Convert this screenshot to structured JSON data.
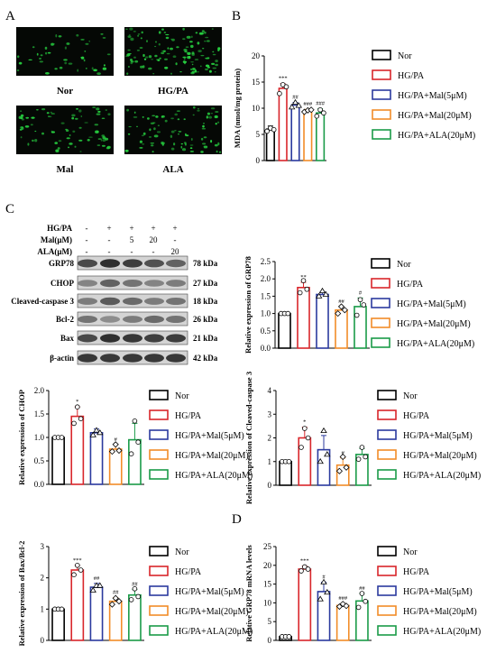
{
  "panel_letters": {
    "a": "A",
    "b": "B",
    "c": "C",
    "d": "D"
  },
  "colors": {
    "nor": "#000000",
    "hgpa": "#d9262b",
    "mal5": "#2b3a9e",
    "mal20": "#f28c28",
    "ala": "#1a9b48",
    "cell": "#27d040"
  },
  "micrographs": [
    {
      "label": "Nor",
      "density": 0.35
    },
    {
      "label": "HG/PA",
      "density": 1.0
    },
    {
      "label": "Mal",
      "density": 0.6
    },
    {
      "label": "ALA",
      "density": 0.7
    }
  ],
  "legend": [
    "Nor",
    "HG/PA",
    "HG/PA+Mal(5μM)",
    "HG/PA+Mal(20μM)",
    "HG/PA+ALA(20μM)"
  ],
  "blot": {
    "treatment_rows": [
      {
        "label": "HG/PA",
        "values": [
          "-",
          "+",
          "+",
          "+",
          "+"
        ]
      },
      {
        "label": "Mal(μM)",
        "values": [
          "-",
          "-",
          "5",
          "20",
          "-"
        ]
      },
      {
        "label": "ALA(μM)",
        "values": [
          "-",
          "-",
          "-",
          "-",
          "20"
        ]
      }
    ],
    "bands": [
      {
        "protein": "GRP78",
        "size": "78 kDa",
        "intensity": [
          0.75,
          0.9,
          0.82,
          0.7,
          0.6
        ]
      },
      {
        "protein": "CHOP",
        "size": "27 kDa",
        "intensity": [
          0.4,
          0.6,
          0.5,
          0.4,
          0.45
        ]
      },
      {
        "protein": "Cleaved-caspase 3",
        "size": "18 kDa",
        "intensity": [
          0.45,
          0.65,
          0.55,
          0.45,
          0.5
        ]
      },
      {
        "protein": "Bcl-2",
        "size": "26 kDa",
        "intensity": [
          0.5,
          0.35,
          0.45,
          0.55,
          0.5
        ]
      },
      {
        "protein": "Bax",
        "size": "21 kDa",
        "intensity": [
          0.75,
          0.9,
          0.85,
          0.8,
          0.82
        ]
      },
      {
        "protein": "β-actin",
        "size": "42 kDa",
        "intensity": [
          0.85,
          0.85,
          0.85,
          0.85,
          0.85
        ]
      }
    ]
  },
  "chart_data": [
    {
      "type": "bar",
      "title": "",
      "ylabel": "MDA (nmol/mg protein)",
      "ylim": [
        0,
        20
      ],
      "yticks": [
        0,
        5,
        10,
        15,
        20
      ],
      "categories": [
        "Nor",
        "HG/PA",
        "HG/PA+Mal(5μM)",
        "HG/PA+Mal(20μM)",
        "HG/PA+ALA(20μM)"
      ],
      "values": [
        6.0,
        13.8,
        10.6,
        9.5,
        9.1
      ],
      "errors": [
        0.6,
        0.9,
        0.5,
        0.3,
        0.8
      ],
      "points": [
        [
          5.6,
          6.2,
          5.9
        ],
        [
          12.8,
          14.5,
          14.1
        ],
        [
          10.2,
          11.1,
          10.5
        ],
        [
          9.3,
          9.6,
          9.7
        ],
        [
          8.5,
          9.7,
          9.1
        ]
      ],
      "significance": [
        "",
        "***",
        "##",
        "###",
        "###"
      ]
    },
    {
      "type": "bar",
      "title": "",
      "ylabel": "Relative expression of GRP78",
      "ylim": [
        0,
        2.5
      ],
      "yticks": [
        "0.0",
        "0.5",
        "1.0",
        "1.5",
        "2.0",
        "2.5"
      ],
      "categories": [
        "Nor",
        "HG/PA",
        "HG/PA+Mal(5μM)",
        "HG/PA+Mal(20μM)",
        "HG/PA+ALA(20μM)"
      ],
      "values": [
        1.0,
        1.75,
        1.55,
        1.1,
        1.2
      ],
      "errors": [
        0.02,
        0.15,
        0.08,
        0.1,
        0.25
      ],
      "points": [
        [
          1.0,
          1.0,
          1.0
        ],
        [
          1.6,
          1.95,
          1.7
        ],
        [
          1.5,
          1.65,
          1.55
        ],
        [
          1.0,
          1.2,
          1.1
        ],
        [
          0.95,
          1.4,
          1.25
        ]
      ],
      "significance": [
        "",
        "**",
        "",
        "##",
        "#"
      ]
    },
    {
      "type": "bar",
      "title": "",
      "ylabel": "Relative expression of CHOP",
      "ylim": [
        0,
        2.0
      ],
      "yticks": [
        "0.0",
        "0.5",
        "1.0",
        "1.5",
        "2.0"
      ],
      "categories": [
        "Nor",
        "HG/PA",
        "HG/PA+Mal(5μM)",
        "HG/PA+Mal(20μM)",
        "HG/PA+ALA(20μM)"
      ],
      "values": [
        1.0,
        1.45,
        1.1,
        0.75,
        0.95
      ],
      "errors": [
        0.02,
        0.2,
        0.08,
        0.1,
        0.35
      ],
      "points": [
        [
          1.0,
          1.0,
          1.0
        ],
        [
          1.3,
          1.65,
          1.4
        ],
        [
          1.05,
          1.15,
          1.1
        ],
        [
          0.7,
          0.85,
          0.72
        ],
        [
          0.65,
          1.35,
          0.9
        ]
      ],
      "significance": [
        "",
        "*",
        "",
        "#",
        ""
      ]
    },
    {
      "type": "bar",
      "title": "",
      "ylabel": "Relative expression of Cleaved-caspase 3",
      "ylim": [
        0,
        4
      ],
      "yticks": [
        "0",
        "1",
        "2",
        "3",
        "4"
      ],
      "categories": [
        "Nor",
        "HG/PA",
        "HG/PA+Mal(5μM)",
        "HG/PA+Mal(20μM)",
        "HG/PA+ALA(20μM)"
      ],
      "values": [
        1.0,
        2.0,
        1.5,
        0.85,
        1.3
      ],
      "errors": [
        0.02,
        0.45,
        0.6,
        0.3,
        0.25
      ],
      "points": [
        [
          1.0,
          1.0,
          1.0
        ],
        [
          1.6,
          2.4,
          2.0
        ],
        [
          1.0,
          2.3,
          1.3
        ],
        [
          0.6,
          1.2,
          0.75
        ],
        [
          1.1,
          1.6,
          1.2
        ]
      ],
      "significance": [
        "",
        "*",
        "",
        "#",
        ""
      ]
    },
    {
      "type": "bar",
      "title": "",
      "ylabel": "Relative expression of Bax/Bcl-2",
      "ylim": [
        0,
        3
      ],
      "yticks": [
        "0",
        "1",
        "2",
        "3"
      ],
      "categories": [
        "Nor",
        "HG/PA",
        "HG/PA+Mal(5μM)",
        "HG/PA+Mal(20μM)",
        "HG/PA+ALA(20μM)"
      ],
      "values": [
        1.0,
        2.25,
        1.7,
        1.25,
        1.45
      ],
      "errors": [
        0.02,
        0.15,
        0.12,
        0.12,
        0.18
      ],
      "points": [
        [
          1.0,
          1.0,
          1.0
        ],
        [
          2.1,
          2.4,
          2.25
        ],
        [
          1.6,
          1.75,
          1.75
        ],
        [
          1.15,
          1.35,
          1.25
        ],
        [
          1.3,
          1.65,
          1.4
        ]
      ],
      "significance": [
        "",
        "***",
        "##",
        "##",
        "##"
      ]
    },
    {
      "type": "bar",
      "title": "",
      "ylabel": "Relative GRP78 mRNA levels",
      "ylim": [
        0,
        25
      ],
      "yticks": [
        "0",
        "5",
        "10",
        "15",
        "20",
        "25"
      ],
      "categories": [
        "Nor",
        "HG/PA",
        "HG/PA+Mal(5μM)",
        "HG/PA+Mal(20μM)",
        "HG/PA+ALA(20μM)"
      ],
      "values": [
        1.0,
        19.0,
        13.0,
        9.3,
        10.5
      ],
      "errors": [
        0.1,
        0.8,
        2.5,
        0.5,
        2.0
      ],
      "points": [
        [
          1.0,
          1.0,
          1.0
        ],
        [
          18.5,
          19.6,
          19.0
        ],
        [
          11.0,
          15.5,
          12.8
        ],
        [
          9.0,
          9.7,
          9.2
        ],
        [
          8.8,
          12.5,
          10.4
        ]
      ],
      "significance": [
        "",
        "***",
        "#",
        "###",
        "##"
      ]
    }
  ]
}
